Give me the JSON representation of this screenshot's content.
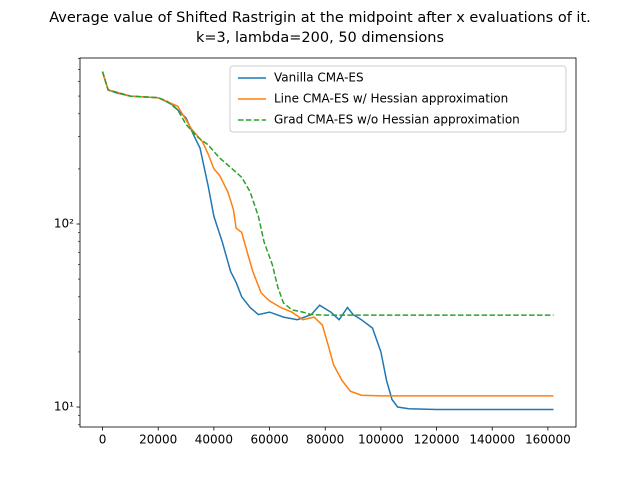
{
  "chart_data": {
    "type": "line",
    "title": "Average value of Shifted Rastrigin at the midpoint after x evaluations of it.",
    "subtitle": "k=3, lambda=200, 50 dimensions",
    "yscale": "log",
    "xlim": [
      -8100,
      170100
    ],
    "ylim": [
      7.78,
      807
    ],
    "xticks": [
      0,
      20000,
      40000,
      60000,
      80000,
      100000,
      120000,
      140000,
      160000
    ],
    "yticks": [
      {
        "value": 10,
        "label": "10¹"
      },
      {
        "value": 100,
        "label": "10²"
      }
    ],
    "legend": "upper right",
    "series": [
      {
        "name": "Vanilla CMA-ES",
        "color": "#1f77b4",
        "dash": "solid",
        "x": [
          0,
          2000,
          5000,
          10000,
          20000,
          25000,
          30000,
          33000,
          35000,
          38000,
          40000,
          43000,
          46000,
          48000,
          50000,
          53000,
          56000,
          60000,
          65000,
          70000,
          75000,
          78000,
          82000,
          85000,
          88000,
          90000,
          93000,
          97000,
          100000,
          102000,
          104000,
          106000,
          110000,
          120000,
          162000
        ],
        "values": [
          680,
          540,
          520,
          500,
          490,
          450,
          380,
          300,
          260,
          160,
          110,
          80,
          55,
          48,
          40,
          35,
          32,
          33,
          31,
          30,
          32,
          36,
          33,
          30,
          35,
          32,
          30,
          27,
          20,
          14,
          11,
          10,
          9.8,
          9.7,
          9.7
        ]
      },
      {
        "name": "Line CMA-ES w/ Hessian approximation",
        "color": "#ff7f0e",
        "dash": "solid",
        "x": [
          0,
          2000,
          10000,
          20000,
          27000,
          32000,
          36000,
          38000,
          40000,
          42000,
          45000,
          47000,
          48000,
          50000,
          52000,
          54000,
          57000,
          60000,
          64000,
          68000,
          72000,
          76000,
          79000,
          81000,
          83000,
          86000,
          89000,
          93000,
          100000,
          162000
        ],
        "values": [
          680,
          540,
          500,
          490,
          440,
          330,
          280,
          240,
          200,
          185,
          150,
          120,
          95,
          90,
          70,
          55,
          42,
          38,
          35,
          33,
          30,
          31,
          28,
          22,
          17,
          14,
          12.2,
          11.6,
          11.5,
          11.5
        ]
      },
      {
        "name": "Grad CMA-ES w/o Hessian approximation",
        "color": "#2ca02c",
        "dash": "dashed",
        "x": [
          0,
          2000,
          10000,
          20000,
          23000,
          27000,
          30000,
          34000,
          38000,
          42000,
          45000,
          50000,
          53000,
          56000,
          58000,
          61000,
          63000,
          65000,
          68000,
          72000,
          75000,
          80000,
          162000
        ],
        "values": [
          680,
          540,
          500,
          490,
          470,
          420,
          350,
          300,
          270,
          230,
          210,
          180,
          150,
          110,
          80,
          60,
          45,
          37,
          34,
          33,
          32,
          31.8,
          31.8
        ]
      }
    ]
  }
}
